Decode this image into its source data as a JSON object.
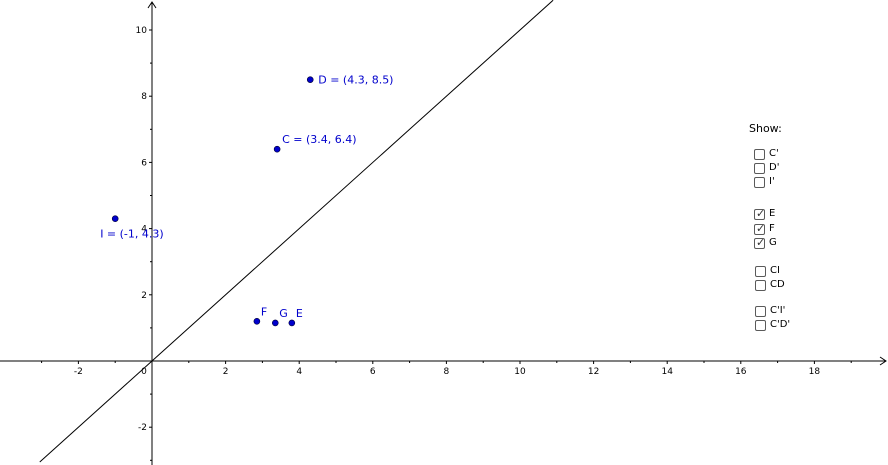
{
  "graph": {
    "x_ticks": [
      "-2",
      "0",
      "2",
      "4",
      "6",
      "8",
      "10",
      "12",
      "14",
      "16",
      "18"
    ],
    "y_ticks": [
      "-2",
      "2",
      "4",
      "6",
      "8",
      "10"
    ],
    "line_color": "#000000",
    "point_color": "#0000cc",
    "points": [
      {
        "name": "point-d",
        "x": 4.3,
        "y": 8.5,
        "label": "D = (4.3, 8.5)"
      },
      {
        "name": "point-c",
        "x": 3.4,
        "y": 6.4,
        "label": "C = (3.4, 6.4)"
      },
      {
        "name": "point-i",
        "x": -1,
        "y": 4.3,
        "label": "I = (-1, 4.3)"
      },
      {
        "name": "point-f",
        "x": 2.85,
        "y": 1.2,
        "label": "F"
      },
      {
        "name": "point-g",
        "x": 3.35,
        "y": 1.15,
        "label": "G"
      },
      {
        "name": "point-e",
        "x": 3.8,
        "y": 1.15,
        "label": "E"
      }
    ],
    "line": {
      "equation": "y = x"
    }
  },
  "panel": {
    "title": "Show:",
    "checkboxes": [
      {
        "label": "C'",
        "checked": false
      },
      {
        "label": "D'",
        "checked": false
      },
      {
        "label": "I'",
        "checked": false
      },
      {
        "label": "E",
        "checked": true
      },
      {
        "label": "F",
        "checked": true
      },
      {
        "label": "G",
        "checked": true
      },
      {
        "label": "CI",
        "checked": false
      },
      {
        "label": "CD",
        "checked": false
      },
      {
        "label": "C'I'",
        "checked": false
      },
      {
        "label": "C'D'",
        "checked": false
      }
    ]
  }
}
